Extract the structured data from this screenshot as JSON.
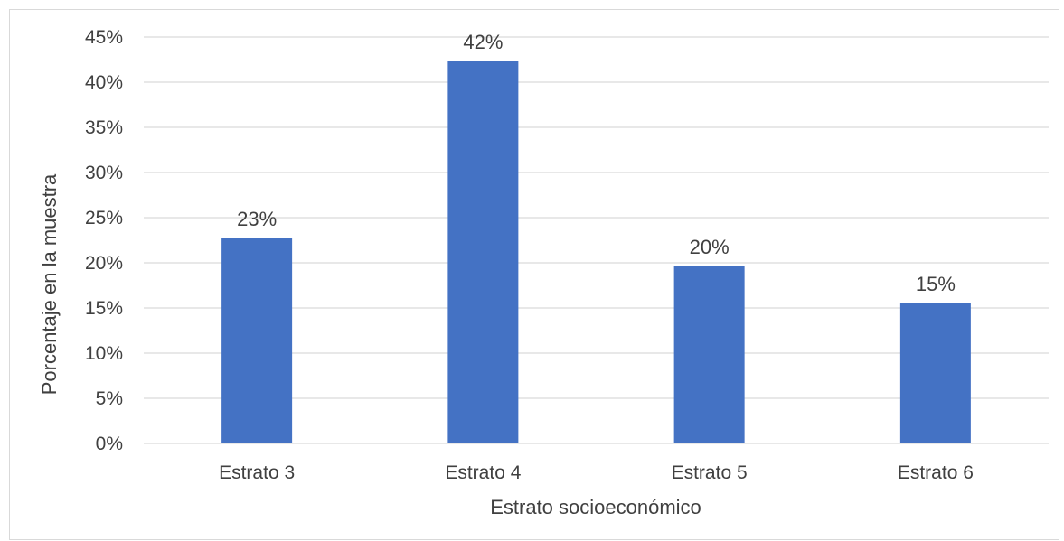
{
  "chart_data": {
    "type": "bar",
    "categories": [
      "Estrato 3",
      "Estrato 4",
      "Estrato 5",
      "Estrato 6"
    ],
    "values": [
      0.227,
      0.423,
      0.196,
      0.155
    ],
    "data_labels": [
      "23%",
      "42%",
      "20%",
      "15%"
    ],
    "xlabel": "Estrato socioeconómico",
    "ylabel": "Porcentaje en la muestra",
    "ylim": [
      0,
      0.45
    ],
    "yticks": [
      0,
      0.05,
      0.1,
      0.15,
      0.2,
      0.25,
      0.3,
      0.35,
      0.4,
      0.45
    ],
    "ytick_labels": [
      "0%",
      "5%",
      "10%",
      "15%",
      "20%",
      "25%",
      "30%",
      "35%",
      "40%",
      "45%"
    ],
    "grid": true,
    "legend": "none",
    "colors": {
      "bar": "#4472c4",
      "grid": "#d9d9d9",
      "text": "#404040"
    }
  }
}
